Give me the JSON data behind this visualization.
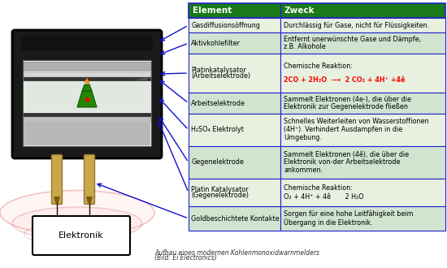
{
  "header_color": "#1a7a1a",
  "header_text_color": "#ffffff",
  "row_colors_even": "#e8f0e0",
  "row_colors_odd": "#d0e4d0",
  "border_color": "#2222cc",
  "col1_header": "Element",
  "col2_header": "Zweck",
  "rows": [
    {
      "element": "Gasdiffusionsöffnung",
      "element_lines": [
        "Gasdiffusionsöffnung"
      ],
      "zweck_lines": [
        "Durchlässig für Gase, nicht für Flüssigkeiten."
      ],
      "zweck_red_line": -1
    },
    {
      "element": "Aktivkohlefilter",
      "element_lines": [
        "Aktivkohlefilter"
      ],
      "zweck_lines": [
        "Entfernt unerwünschte Gase und Dämpfe,",
        "z.B. Alkohole"
      ],
      "zweck_red_line": -1
    },
    {
      "element": "Platinkatalysator",
      "element_lines": [
        "Platinkatalysator",
        "(Arbeitselektrode)"
      ],
      "zweck_lines": [
        "Chemische Reaktion:",
        "2CO + 2H₂O  ⟶  2 CO₂ + 4H⁺ +4ê"
      ],
      "zweck_red_line": 1
    },
    {
      "element": "Arbeitselektrode",
      "element_lines": [
        "Arbeitselektrode"
      ],
      "zweck_lines": [
        "Sammelt Elektronen (4e-), die über die",
        "Elektronik zur Gegenelektrode fließen"
      ],
      "zweck_red_line": -1
    },
    {
      "element": "H₂SO₄ Elektrolyt",
      "element_lines": [
        "H₂SO₄ Elektrolyt"
      ],
      "zweck_lines": [
        "Schnelles Weiterleiten von Wasserstoffionen",
        "(4H⁺). Verhindert Ausdampfen in die",
        "Umgebung."
      ],
      "zweck_red_line": -1
    },
    {
      "element": "Gegenelektrode",
      "element_lines": [
        "Gegenelektrode"
      ],
      "zweck_lines": [
        "Sammelt Elektronen (4ê), die über die",
        "Elektronik von-der Arbeitselektrode",
        "ankommen."
      ],
      "zweck_red_line": -1
    },
    {
      "element": "Platin Katalysator",
      "element_lines": [
        "Platin Katalysator",
        "(Gegenelektrode)"
      ],
      "zweck_lines": [
        "Chemische Reaktion:",
        "O₂ + 4H⁺ + 4ê       2 H₂O"
      ],
      "zweck_red_line": -1
    },
    {
      "element": "Goldbeschichtete Kontakte",
      "element_lines": [
        "Goldbeschichtete Kontakte"
      ],
      "zweck_lines": [
        "Sorgen für eine hohe Leitfähigkeit beim",
        "Übergang in die Elektronik."
      ],
      "zweck_red_line": -1
    }
  ],
  "arrow_color": "#1111cc",
  "bg_color": "#ffffff",
  "title_line1": "Aufbau eines modernen Kohlenmonoxidwarnmelders",
  "title_line2": "(Bild: Ei Electronics)"
}
